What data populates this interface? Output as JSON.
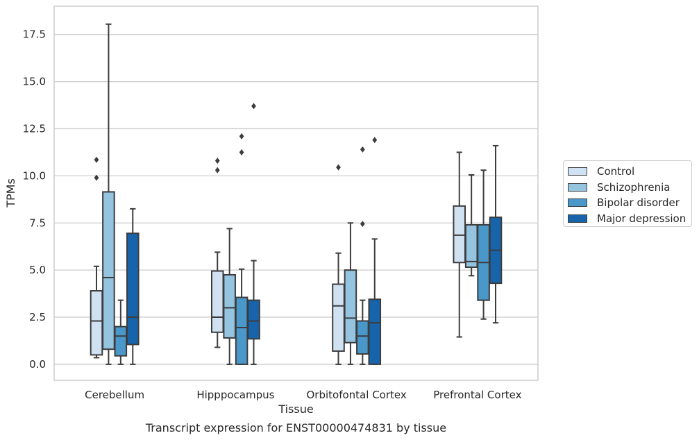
{
  "chart_data": {
    "type": "boxplot",
    "title": "Transcript expression for ENST00000474831 by tissue",
    "xlabel": "Tissue",
    "ylabel": "TPMs",
    "ylim": [
      -0.85,
      19.0
    ],
    "yticks": [
      "0.0",
      "2.5",
      "5.0",
      "7.5",
      "10.0",
      "12.5",
      "15.0",
      "17.5"
    ],
    "ytick_values": [
      0,
      2.5,
      5.0,
      7.5,
      10.0,
      12.5,
      15.0,
      17.5
    ],
    "grid": "horizontal",
    "legend_position": "right",
    "categories": [
      "Cerebellum",
      "Hipppocampus",
      "Orbitofontal Cortex",
      "Prefrontal Cortex"
    ],
    "series": [
      {
        "name": "Control",
        "color": "#d0e1f2",
        "boxes": [
          {
            "whislo": 0.35,
            "q1": 0.5,
            "med": 2.3,
            "q3": 3.9,
            "whishi": 5.2,
            "fliers": [
              9.9,
              10.85
            ]
          },
          {
            "whislo": 0.9,
            "q1": 1.7,
            "med": 2.5,
            "q3": 4.95,
            "whishi": 5.95,
            "fliers": [
              10.3,
              10.8
            ]
          },
          {
            "whislo": 0.0,
            "q1": 0.7,
            "med": 3.1,
            "q3": 4.25,
            "whishi": 5.9,
            "fliers": [
              10.45
            ]
          },
          {
            "whislo": 1.45,
            "q1": 5.4,
            "med": 6.85,
            "q3": 8.4,
            "whishi": 11.25,
            "fliers": []
          }
        ]
      },
      {
        "name": "Schizophrenia",
        "color": "#94c4df",
        "boxes": [
          {
            "whislo": 0.0,
            "q1": 0.8,
            "med": 4.6,
            "q3": 9.15,
            "whishi": 18.05,
            "fliers": []
          },
          {
            "whislo": 0.0,
            "q1": 1.4,
            "med": 3.0,
            "q3": 4.75,
            "whishi": 7.2,
            "fliers": []
          },
          {
            "whislo": 0.0,
            "q1": 1.15,
            "med": 2.45,
            "q3": 5.0,
            "whishi": 7.5,
            "fliers": []
          },
          {
            "whislo": 4.7,
            "q1": 5.15,
            "med": 5.45,
            "q3": 7.4,
            "whishi": 10.05,
            "fliers": []
          }
        ]
      },
      {
        "name": "Bipolar disorder",
        "color": "#4a98c9",
        "boxes": [
          {
            "whislo": 0.0,
            "q1": 0.45,
            "med": 1.5,
            "q3": 2.0,
            "whishi": 3.4,
            "fliers": []
          },
          {
            "whislo": 0.0,
            "q1": 0.0,
            "med": 1.95,
            "q3": 3.55,
            "whishi": 5.05,
            "fliers": [
              11.25,
              12.1
            ]
          },
          {
            "whislo": 0.0,
            "q1": 0.55,
            "med": 1.5,
            "q3": 2.3,
            "whishi": 3.4,
            "fliers": [
              7.45,
              11.4
            ]
          },
          {
            "whislo": 2.4,
            "q1": 3.4,
            "med": 5.4,
            "q3": 7.4,
            "whishi": 10.3,
            "fliers": []
          }
        ]
      },
      {
        "name": "Major depression",
        "color": "#1764ab",
        "boxes": [
          {
            "whislo": 0.0,
            "q1": 1.05,
            "med": 2.5,
            "q3": 6.95,
            "whishi": 8.25,
            "fliers": []
          },
          {
            "whislo": 0.0,
            "q1": 1.35,
            "med": 2.3,
            "q3": 3.4,
            "whishi": 5.5,
            "fliers": [
              13.7
            ]
          },
          {
            "whislo": 0.0,
            "q1": 0.0,
            "med": 2.2,
            "q3": 3.45,
            "whishi": 6.65,
            "fliers": [
              11.9
            ]
          },
          {
            "whislo": 2.2,
            "q1": 4.3,
            "med": 6.05,
            "q3": 7.8,
            "whishi": 11.6,
            "fliers": []
          }
        ]
      }
    ]
  }
}
